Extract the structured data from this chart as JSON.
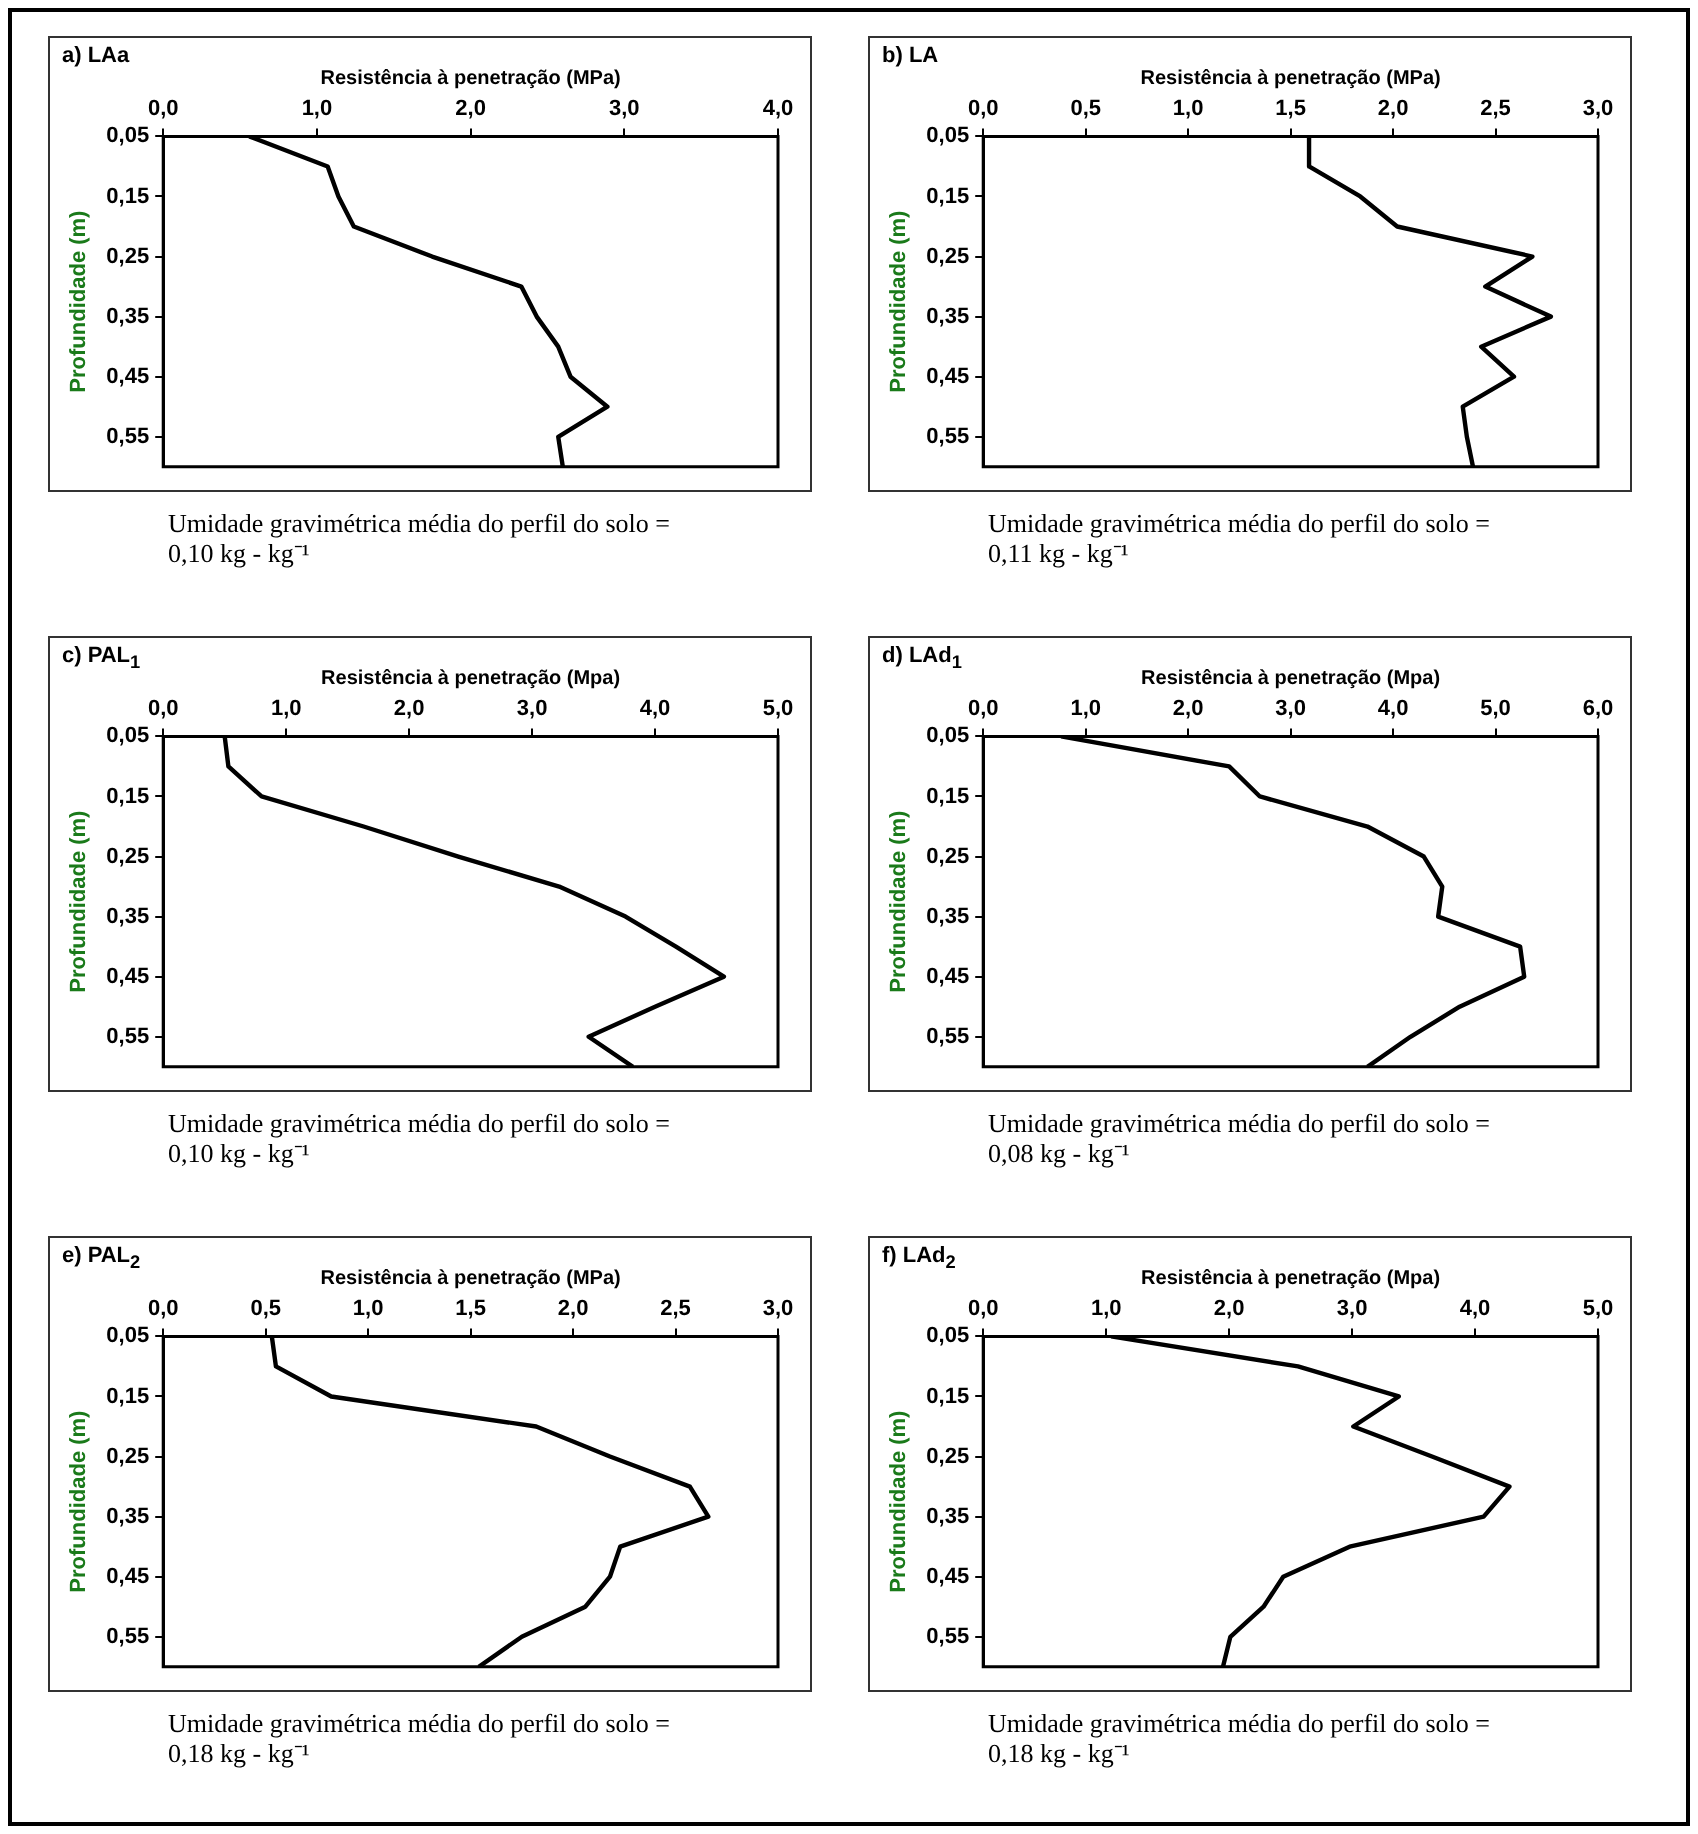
{
  "chart_data": [
    {
      "type": "line",
      "title": "a) LAa",
      "xlabel": "Resistência à penetração (MPa)",
      "ylabel": "Profundidade (m)",
      "annotations": [
        "Umidade gravimétrica média do perfil do solo = 0,10 kg - kg⁻¹"
      ],
      "grid": false,
      "legend": false,
      "marker": "none",
      "line_style": "solid",
      "xlim": [
        0,
        4
      ],
      "xticks": [
        {
          "value": 0,
          "label": "0,0"
        },
        {
          "value": 1,
          "label": "1,0"
        },
        {
          "value": 2,
          "label": "2,0"
        },
        {
          "value": 3,
          "label": "3,0"
        },
        {
          "value": 4,
          "label": "4,0"
        }
      ],
      "ylim": [
        0.6,
        0.05
      ],
      "yticks": [
        {
          "value": 0.05,
          "label": "0,05"
        },
        {
          "value": 0.15,
          "label": "0,15"
        },
        {
          "value": 0.25,
          "label": "0,25"
        },
        {
          "value": 0.35,
          "label": "0,35"
        },
        {
          "value": 0.45,
          "label": "0,45"
        },
        {
          "value": 0.55,
          "label": "0,55"
        }
      ],
      "series": [
        {
          "color": "#000000",
          "x": [
            0.56,
            1.07,
            1.14,
            1.24,
            1.75,
            2.33,
            2.43,
            2.57,
            2.65,
            2.89,
            2.57,
            2.6
          ],
          "values": [
            0.05,
            0.1,
            0.15,
            0.2,
            0.25,
            0.3,
            0.35,
            0.4,
            0.45,
            0.5,
            0.55,
            0.6
          ]
        }
      ]
    },
    {
      "type": "line",
      "title": "b) LA",
      "xlabel": "Resistência à penetração (MPa)",
      "ylabel": "Profundidade (m)",
      "annotations": [
        "Umidade gravimétrica média do perfil do solo = 0,11 kg - kg⁻¹"
      ],
      "grid": false,
      "legend": false,
      "marker": "none",
      "line_style": "solid",
      "xlim": [
        0,
        3
      ],
      "xticks": [
        {
          "value": 0,
          "label": "0,0"
        },
        {
          "value": 0.5,
          "label": "0,5"
        },
        {
          "value": 1,
          "label": "1,0"
        },
        {
          "value": 1.5,
          "label": "1,5"
        },
        {
          "value": 2,
          "label": "2,0"
        },
        {
          "value": 2.5,
          "label": "2,5"
        },
        {
          "value": 3,
          "label": "3,0"
        }
      ],
      "ylim": [
        0.6,
        0.05
      ],
      "yticks": [
        {
          "value": 0.05,
          "label": "0,05"
        },
        {
          "value": 0.15,
          "label": "0,15"
        },
        {
          "value": 0.25,
          "label": "0,25"
        },
        {
          "value": 0.35,
          "label": "0,35"
        },
        {
          "value": 0.45,
          "label": "0,45"
        },
        {
          "value": 0.55,
          "label": "0,55"
        }
      ],
      "series": [
        {
          "color": "#000000",
          "x": [
            1.59,
            1.59,
            1.84,
            2.02,
            2.68,
            2.45,
            2.77,
            2.43,
            2.59,
            2.34,
            2.36,
            2.39
          ],
          "values": [
            0.05,
            0.1,
            0.15,
            0.2,
            0.25,
            0.3,
            0.35,
            0.4,
            0.45,
            0.5,
            0.55,
            0.6
          ]
        }
      ]
    },
    {
      "type": "line",
      "title": "c) PAL$_{1}$",
      "xlabel": "Resistência à penetração (Mpa)",
      "ylabel": "Profundidade (m)",
      "annotations": [
        "Umidade gravimétrica média do perfil do solo = 0,10 kg - kg⁻¹"
      ],
      "grid": false,
      "legend": false,
      "marker": "none",
      "line_style": "solid",
      "xlim": [
        0,
        5
      ],
      "xticks": [
        {
          "value": 0,
          "label": "0,0"
        },
        {
          "value": 1,
          "label": "1,0"
        },
        {
          "value": 2,
          "label": "2,0"
        },
        {
          "value": 3,
          "label": "3,0"
        },
        {
          "value": 4,
          "label": "4,0"
        },
        {
          "value": 5,
          "label": "5,0"
        }
      ],
      "ylim": [
        0.6,
        0.05
      ],
      "yticks": [
        {
          "value": 0.05,
          "label": "0,05"
        },
        {
          "value": 0.15,
          "label": "0,15"
        },
        {
          "value": 0.25,
          "label": "0,25"
        },
        {
          "value": 0.35,
          "label": "0,35"
        },
        {
          "value": 0.45,
          "label": "0,45"
        },
        {
          "value": 0.55,
          "label": "0,55"
        }
      ],
      "series": [
        {
          "color": "#000000",
          "x": [
            0.5,
            0.53,
            0.8,
            1.63,
            2.4,
            3.22,
            3.76,
            4.17,
            4.56,
            4.0,
            3.46,
            3.82
          ],
          "values": [
            0.05,
            0.1,
            0.15,
            0.2,
            0.25,
            0.3,
            0.35,
            0.4,
            0.45,
            0.5,
            0.55,
            0.6
          ]
        }
      ]
    },
    {
      "type": "line",
      "title": "d) LAd$_{1}$",
      "xlabel": "Resistência à penetração (Mpa)",
      "ylabel": "Profundidade (m)",
      "annotations": [
        "Umidade gravimétrica média do perfil do solo = 0,08 kg - kg⁻¹"
      ],
      "grid": false,
      "legend": false,
      "marker": "none",
      "line_style": "solid",
      "xlim": [
        0,
        6
      ],
      "xticks": [
        {
          "value": 0,
          "label": "0,0"
        },
        {
          "value": 1,
          "label": "1,0"
        },
        {
          "value": 2,
          "label": "2,0"
        },
        {
          "value": 3,
          "label": "3,0"
        },
        {
          "value": 4,
          "label": "4,0"
        },
        {
          "value": 5,
          "label": "5,0"
        },
        {
          "value": 6,
          "label": "6,0"
        }
      ],
      "ylim": [
        0.6,
        0.05
      ],
      "yticks": [
        {
          "value": 0.05,
          "label": "0,05"
        },
        {
          "value": 0.15,
          "label": "0,15"
        },
        {
          "value": 0.25,
          "label": "0,25"
        },
        {
          "value": 0.35,
          "label": "0,35"
        },
        {
          "value": 0.45,
          "label": "0,45"
        },
        {
          "value": 0.55,
          "label": "0,55"
        }
      ],
      "series": [
        {
          "color": "#000000",
          "x": [
            0.76,
            2.4,
            2.7,
            3.75,
            4.3,
            4.48,
            4.44,
            5.24,
            5.28,
            4.65,
            4.17,
            3.75
          ],
          "values": [
            0.05,
            0.1,
            0.15,
            0.2,
            0.25,
            0.3,
            0.35,
            0.4,
            0.45,
            0.5,
            0.55,
            0.6
          ]
        }
      ]
    },
    {
      "type": "line",
      "title": "e) PAL$_{2}$",
      "xlabel": "Resistência à penetração (MPa)",
      "ylabel": "Profundidade (m)",
      "annotations": [
        "Umidade gravimétrica média do perfil do solo = 0,18 kg - kg⁻¹"
      ],
      "grid": false,
      "legend": false,
      "marker": "none",
      "line_style": "solid",
      "xlim": [
        0,
        3
      ],
      "xticks": [
        {
          "value": 0,
          "label": "0,0"
        },
        {
          "value": 0.5,
          "label": "0,5"
        },
        {
          "value": 1,
          "label": "1,0"
        },
        {
          "value": 1.5,
          "label": "1,5"
        },
        {
          "value": 2,
          "label": "2,0"
        },
        {
          "value": 2.5,
          "label": "2,5"
        },
        {
          "value": 3,
          "label": "3,0"
        }
      ],
      "ylim": [
        0.6,
        0.05
      ],
      "yticks": [
        {
          "value": 0.05,
          "label": "0,05"
        },
        {
          "value": 0.15,
          "label": "0,15"
        },
        {
          "value": 0.25,
          "label": "0,25"
        },
        {
          "value": 0.35,
          "label": "0,35"
        },
        {
          "value": 0.45,
          "label": "0,45"
        },
        {
          "value": 0.55,
          "label": "0,55"
        }
      ],
      "series": [
        {
          "color": "#000000",
          "x": [
            0.53,
            0.55,
            0.82,
            1.82,
            2.18,
            2.57,
            2.66,
            2.23,
            2.18,
            2.06,
            1.75,
            1.54
          ],
          "values": [
            0.05,
            0.1,
            0.15,
            0.2,
            0.25,
            0.3,
            0.35,
            0.4,
            0.45,
            0.5,
            0.55,
            0.6
          ]
        }
      ]
    },
    {
      "type": "line",
      "title": "f) LAd$_{2}$",
      "xlabel": "Resistência à penetração (Mpa)",
      "ylabel": "Profundidade (m)",
      "annotations": [
        "Umidade gravimétrica média do perfil do solo = 0,18 kg - kg⁻¹"
      ],
      "grid": false,
      "legend": false,
      "marker": "none",
      "line_style": "solid",
      "xlim": [
        0,
        5
      ],
      "xticks": [
        {
          "value": 0,
          "label": "0,0"
        },
        {
          "value": 1,
          "label": "1,0"
        },
        {
          "value": 2,
          "label": "2,0"
        },
        {
          "value": 3,
          "label": "3,0"
        },
        {
          "value": 4,
          "label": "4,0"
        },
        {
          "value": 5,
          "label": "5,0"
        }
      ],
      "ylim": [
        0.6,
        0.05
      ],
      "yticks": [
        {
          "value": 0.05,
          "label": "0,05"
        },
        {
          "value": 0.15,
          "label": "0,15"
        },
        {
          "value": 0.25,
          "label": "0,25"
        },
        {
          "value": 0.35,
          "label": "0,35"
        },
        {
          "value": 0.45,
          "label": "0,45"
        },
        {
          "value": 0.55,
          "label": "0,55"
        }
      ],
      "series": [
        {
          "color": "#000000",
          "x": [
            1.04,
            2.56,
            3.38,
            3.01,
            3.65,
            4.28,
            4.07,
            2.98,
            2.44,
            2.28,
            2.01,
            1.95
          ],
          "values": [
            0.05,
            0.1,
            0.15,
            0.2,
            0.25,
            0.3,
            0.35,
            0.4,
            0.45,
            0.5,
            0.55,
            0.6
          ]
        }
      ]
    }
  ]
}
